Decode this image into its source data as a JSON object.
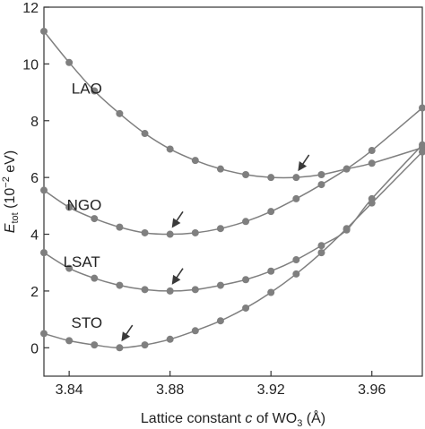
{
  "chart_data": {
    "type": "line",
    "x_label_parts": [
      "Lattice constant ",
      "c",
      " of WO",
      "3",
      " (Å)"
    ],
    "y_label_parts": [
      "E",
      "tot",
      " (10",
      "−2",
      " eV)"
    ],
    "xlim": [
      3.83,
      3.98
    ],
    "ylim": [
      -1,
      12
    ],
    "x_ticks": [
      3.84,
      3.88,
      3.92,
      3.96
    ],
    "x_tick_labels": [
      "3.84",
      "3.88",
      "3.92",
      "3.96"
    ],
    "y_ticks": [
      0,
      2,
      4,
      6,
      8,
      10,
      12
    ],
    "y_tick_labels": [
      "0",
      "2",
      "4",
      "6",
      "8",
      "10",
      "12"
    ],
    "x": [
      3.83,
      3.84,
      3.85,
      3.86,
      3.87,
      3.88,
      3.89,
      3.9,
      3.91,
      3.92,
      3.93,
      3.94,
      3.95,
      3.96,
      3.98
    ],
    "series": [
      {
        "name": "LAO",
        "values": [
          11.15,
          10.05,
          9.05,
          8.25,
          7.55,
          7.0,
          6.6,
          6.3,
          6.1,
          6.0,
          6.0,
          6.1,
          6.3,
          6.5,
          7.05
        ],
        "arrow_x": 3.93,
        "arrow_y": 6.0
      },
      {
        "name": "NGO",
        "values": [
          5.55,
          4.95,
          4.55,
          4.25,
          4.05,
          4.0,
          4.05,
          4.2,
          4.45,
          4.8,
          5.25,
          5.75,
          6.3,
          6.95,
          8.45
        ],
        "arrow_x": 3.88,
        "arrow_y": 4.0
      },
      {
        "name": "LSAT",
        "values": [
          3.35,
          2.8,
          2.45,
          2.2,
          2.05,
          2.0,
          2.05,
          2.2,
          2.4,
          2.7,
          3.1,
          3.6,
          4.15,
          5.25,
          7.15
        ],
        "arrow_x": 3.88,
        "arrow_y": 2.0
      },
      {
        "name": "STO",
        "values": [
          0.5,
          0.25,
          0.1,
          0.0,
          0.1,
          0.3,
          0.6,
          0.95,
          1.4,
          1.95,
          2.6,
          3.35,
          4.2,
          5.1,
          6.9
        ],
        "arrow_x": 3.86,
        "arrow_y": 0.0
      }
    ],
    "line_color": "#7f7f7f",
    "marker_color": "#7f7f7f",
    "arrow_color": "#3a3a3a",
    "grid": false
  }
}
